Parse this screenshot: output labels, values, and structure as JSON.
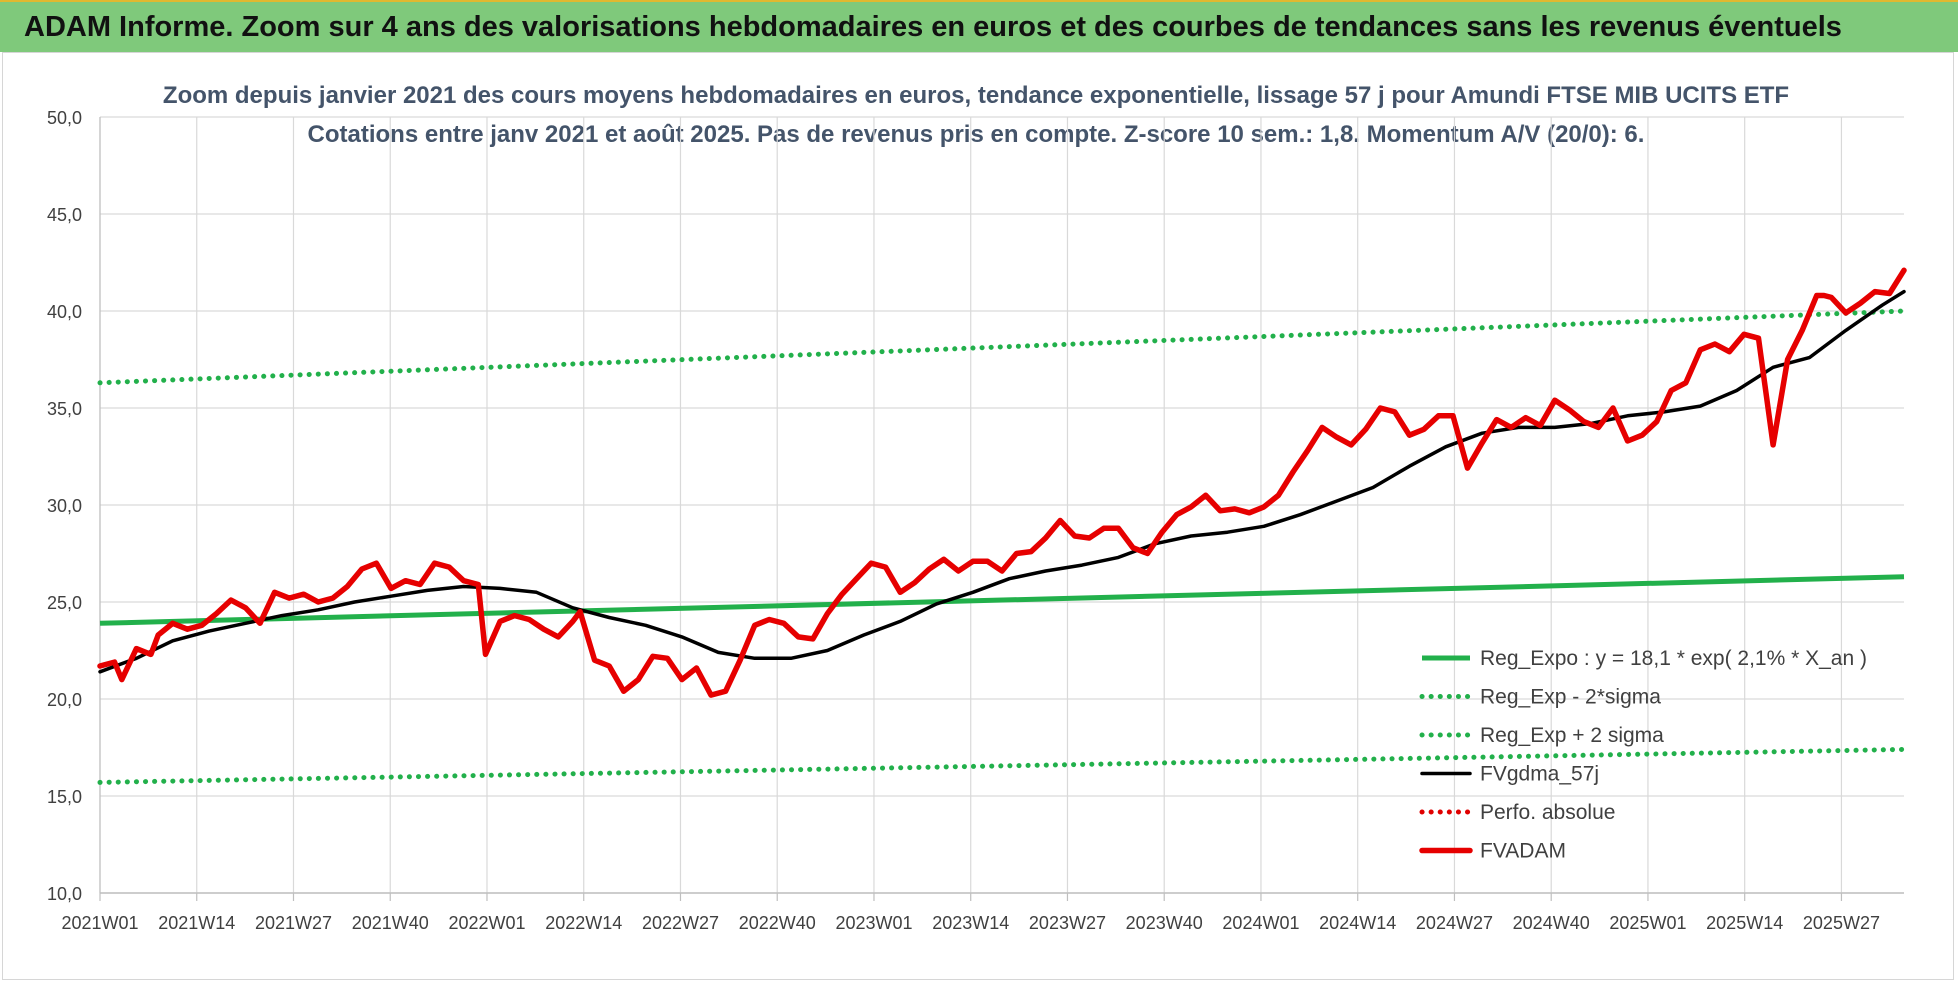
{
  "banner": {
    "title": "ADAM Informe. Zoom sur 4 ans des valorisations hebdomadaires en euros et des courbes de tendances sans les revenus éventuels",
    "color": "#7fc97b"
  },
  "chart_data": {
    "type": "line",
    "title": "Zoom depuis janvier 2021 des cours moyens hebdomadaires en euros, tendance exponentielle, lissage 57 j pour Amundi FTSE MIB UCITS ETF",
    "subtitle": "Cotations entre janv 2021 et août 2025.  Pas de revenus pris en compte. Z-score 10 sem.: 1,8. Momentum A/V (20/0): 6.",
    "xlabel": "",
    "ylabel": "",
    "ylim": [
      10,
      50
    ],
    "yticks": [
      "10,0",
      "15,0",
      "20,0",
      "25,0",
      "30,0",
      "35,0",
      "40,0",
      "45,0",
      "50,0"
    ],
    "xticks": [
      "2021W01",
      "2021W14",
      "2021W27",
      "2021W40",
      "2022W01",
      "2022W14",
      "2022W27",
      "2022W40",
      "2023W01",
      "2023W14",
      "2023W27",
      "2023W40",
      "2024W01",
      "2024W14",
      "2024W27",
      "2024W40",
      "2025W01",
      "2025W14",
      "2025W27"
    ],
    "grid": true,
    "legend_position": "bottom-right",
    "series": [
      {
        "name": "Reg_Expo : y = 18,1 * exp( 2,1% *  X_an )",
        "style": "solid-thin",
        "color": "#22b04b",
        "x": [
          0,
          248
        ],
        "y": [
          23.9,
          26.3
        ]
      },
      {
        "name": "Reg_Exp - 2*sigma",
        "style": "dotted",
        "color": "#22b04b",
        "x": [
          0,
          248
        ],
        "y": [
          15.7,
          17.4
        ]
      },
      {
        "name": "Reg_Exp + 2 sigma",
        "style": "dotted",
        "color": "#22b04b",
        "x": [
          0,
          248
        ],
        "y": [
          36.3,
          40.0
        ]
      },
      {
        "name": "FVgdma_57j",
        "style": "solid",
        "color": "#000000",
        "x": [
          0,
          5,
          10,
          15,
          20,
          25,
          30,
          35,
          40,
          45,
          50,
          55,
          60,
          65,
          70,
          75,
          80,
          85,
          90,
          95,
          100,
          105,
          110,
          115,
          120,
          125,
          130,
          135,
          140,
          145,
          150,
          155,
          160,
          165,
          170,
          175,
          180,
          185,
          190,
          195,
          200,
          205,
          210,
          215,
          220,
          225,
          230,
          235,
          240,
          245,
          248
        ],
        "y": [
          21.4,
          22.1,
          23.0,
          23.5,
          23.9,
          24.3,
          24.6,
          25.0,
          25.3,
          25.6,
          25.8,
          25.7,
          25.5,
          24.7,
          24.2,
          23.8,
          23.2,
          22.4,
          22.1,
          22.1,
          22.5,
          23.3,
          24.0,
          24.9,
          25.5,
          26.2,
          26.6,
          26.9,
          27.3,
          28.0,
          28.4,
          28.6,
          28.9,
          29.5,
          30.2,
          30.9,
          32.0,
          33.0,
          33.7,
          34.0,
          34.0,
          34.2,
          34.6,
          34.8,
          35.1,
          35.9,
          37.1,
          37.6,
          39.0,
          40.3,
          41.0
        ]
      },
      {
        "name": "Perfo. absolue",
        "style": "dotted",
        "color": "#e00000",
        "x": [],
        "y": []
      },
      {
        "name": "FVADAM",
        "style": "solid-thick",
        "color": "#e60000",
        "x": [
          0,
          2,
          3,
          5,
          7,
          8,
          10,
          12,
          14,
          16,
          18,
          20,
          22,
          24,
          26,
          28,
          30,
          32,
          34,
          36,
          38,
          40,
          42,
          44,
          46,
          48,
          50,
          52,
          53,
          55,
          57,
          59,
          61,
          63,
          65,
          66,
          68,
          70,
          72,
          74,
          76,
          78,
          80,
          82,
          84,
          86,
          88,
          90,
          92,
          94,
          96,
          98,
          100,
          102,
          104,
          106,
          108,
          110,
          112,
          114,
          116,
          118,
          120,
          122,
          124,
          126,
          128,
          130,
          132,
          134,
          136,
          138,
          140,
          142,
          144,
          146,
          148,
          150,
          152,
          154,
          156,
          158,
          160,
          162,
          164,
          166,
          168,
          170,
          172,
          174,
          176,
          178,
          180,
          182,
          184,
          186,
          188,
          190,
          192,
          194,
          196,
          198,
          200,
          202,
          204,
          206,
          208,
          210,
          212,
          214,
          216,
          218,
          220,
          222,
          224,
          226,
          228,
          230,
          232,
          234,
          236,
          237,
          238,
          240,
          242,
          244,
          246,
          248
        ],
        "y": [
          21.7,
          21.9,
          21.0,
          22.6,
          22.3,
          23.3,
          23.9,
          23.6,
          23.8,
          24.4,
          25.1,
          24.7,
          23.9,
          25.5,
          25.2,
          25.4,
          25.0,
          25.2,
          25.8,
          26.7,
          27.0,
          25.7,
          26.1,
          25.9,
          27.0,
          26.8,
          26.1,
          25.9,
          22.3,
          24.0,
          24.3,
          24.1,
          23.6,
          23.2,
          24.0,
          24.5,
          22.0,
          21.7,
          20.4,
          21.0,
          22.2,
          22.1,
          21.0,
          21.6,
          20.2,
          20.4,
          22.0,
          23.8,
          24.1,
          23.9,
          23.2,
          23.1,
          24.4,
          25.4,
          26.2,
          27.0,
          26.8,
          25.5,
          26.0,
          26.7,
          27.2,
          26.6,
          27.1,
          27.1,
          26.6,
          27.5,
          27.6,
          28.3,
          29.2,
          28.4,
          28.3,
          28.8,
          28.8,
          27.8,
          27.5,
          28.6,
          29.5,
          29.9,
          30.5,
          29.7,
          29.8,
          29.6,
          29.9,
          30.5,
          31.7,
          32.8,
          34.0,
          33.5,
          33.1,
          33.9,
          35.0,
          34.8,
          33.6,
          33.9,
          34.6,
          34.6,
          31.9,
          33.2,
          34.4,
          34.0,
          34.5,
          34.1,
          35.4,
          34.9,
          34.3,
          34.0,
          35.0,
          33.3,
          33.6,
          34.3,
          35.9,
          36.3,
          38.0,
          38.3,
          37.9,
          38.8,
          38.6,
          33.1,
          37.5,
          39.0,
          40.8,
          40.8,
          40.7,
          39.9,
          40.4,
          41.0,
          40.9,
          42.1
        ]
      }
    ]
  }
}
